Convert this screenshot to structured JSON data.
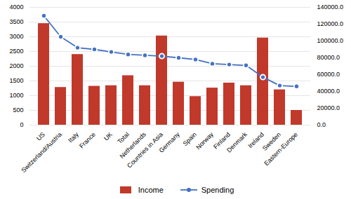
{
  "chart_data": {
    "type": "bar",
    "categories": [
      "US",
      "Switzerland/Austria",
      "Italy",
      "France",
      "UK",
      "Total",
      "Netherlands",
      "Countries in Asia",
      "Germany",
      "Spain",
      "Norway",
      "Finland",
      "Denmark",
      "Ireland",
      "Sweden",
      "Eastern-Europe"
    ],
    "series": [
      {
        "name": "Income",
        "type": "bar",
        "color": "#c0392b",
        "values": [
          3450,
          1280,
          2400,
          1320,
          1340,
          1680,
          1340,
          3030,
          1460,
          970,
          1260,
          1430,
          1340,
          2960,
          1200,
          500
        ]
      },
      {
        "name": "Spending",
        "type": "line",
        "axis": "y2",
        "color": "#4472c4",
        "marker": "circle",
        "values": [
          130000,
          105000,
          92000,
          90000,
          87000,
          84000,
          83000,
          82000,
          80000,
          78000,
          73000,
          72000,
          71000,
          57000,
          47000,
          46000
        ]
      }
    ],
    "ylim": [
      0,
      4000
    ],
    "yticks": [
      0,
      500,
      1000,
      1500,
      2000,
      2500,
      3000,
      3500,
      4000
    ],
    "y2lim": [
      0,
      140000
    ],
    "y2ticks": [
      {
        "value": 0,
        "label": "0.0"
      },
      {
        "value": 20000,
        "label": "20000.0"
      },
      {
        "value": 40000,
        "label": "40000.0"
      },
      {
        "value": 60000,
        "label": "60000.0"
      },
      {
        "value": 80000,
        "label": "80000.0"
      },
      {
        "value": 100000,
        "label": "100000.0"
      },
      {
        "value": 120000,
        "label": "120000.0"
      },
      {
        "value": 140000,
        "label": "140000.0"
      }
    ],
    "grid": true,
    "legend": "bottom"
  }
}
